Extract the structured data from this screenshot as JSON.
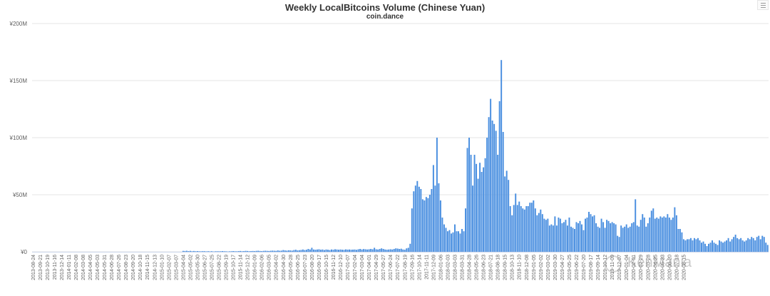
{
  "chart_data": {
    "type": "bar",
    "title": "Weekly LocalBitcoins Volume (Chinese Yuan)",
    "subtitle": "coin.dance",
    "ylabel": "",
    "xlabel": "",
    "ylim": [
      0,
      200000000
    ],
    "yticks": [
      {
        "value": 0,
        "label": "¥0"
      },
      {
        "value": 50000000,
        "label": "¥50M"
      },
      {
        "value": 100000000,
        "label": "¥100M"
      },
      {
        "value": 150000000,
        "label": "¥150M"
      },
      {
        "value": 200000000,
        "label": "¥200M"
      }
    ],
    "x_tick_labels": [
      "2013-08-24",
      "2013-09-21",
      "2013-10-19",
      "2013-11-16",
      "2013-12-14",
      "2014-01-11",
      "2014-02-08",
      "2014-03-08",
      "2014-04-05",
      "2014-05-03",
      "2014-05-31",
      "2014-06-28",
      "2014-07-26",
      "2014-08-23",
      "2014-09-20",
      "2014-10-18",
      "2014-11-15",
      "2014-12-13",
      "2015-01-10",
      "2015-02-07",
      "2015-03-07",
      "2015-04-04",
      "2015-05-02",
      "2015-05-30",
      "2015-06-27",
      "2015-07-25",
      "2015-08-22",
      "2015-09-19",
      "2015-10-17",
      "2015-11-14",
      "2015-12-12",
      "2016-01-09",
      "2016-02-06",
      "2016-03-05",
      "2016-04-02",
      "2016-04-30",
      "2016-05-28",
      "2016-06-25",
      "2016-07-23",
      "2016-08-20",
      "2016-09-17",
      "2016-10-15",
      "2016-11-12",
      "2016-12-10",
      "2017-01-07",
      "2017-02-04",
      "2017-03-04",
      "2017-04-01",
      "2017-04-29",
      "2017-05-27",
      "2017-06-24",
      "2017-07-22",
      "2017-08-19",
      "2017-09-16",
      "2017-10-14",
      "2017-11-11",
      "2017-12-09",
      "2018-01-06",
      "2018-02-03",
      "2018-03-03",
      "2018-03-31",
      "2018-04-28",
      "2018-05-26",
      "2018-06-23",
      "2018-07-21",
      "2018-08-18",
      "2018-09-15",
      "2018-10-13",
      "2018-11-10",
      "2018-12-08",
      "2019-01-05",
      "2019-02-02",
      "2019-03-02",
      "2019-03-30",
      "2019-04-27",
      "2019-05-25",
      "2019-06-22",
      "2019-07-20",
      "2019-08-17",
      "2019-09-14",
      "2019-10-12",
      "2019-11-09",
      "2019-12-07",
      "2020-01-04",
      "2020-02-01",
      "2020-02-29",
      "2020-03-28",
      "2020-04-25",
      "2020-05-23",
      "2020-06-20",
      "2020-07-18",
      "2020-08-15"
    ],
    "weeks_per_tick": 4,
    "color": "#4a8fe0",
    "values_millions": [
      0,
      0,
      0,
      0,
      0,
      0,
      0,
      0,
      0,
      0,
      0,
      0,
      0,
      0,
      0,
      0,
      0,
      0,
      0,
      0,
      0,
      0,
      0,
      0,
      0,
      0,
      0,
      0,
      0,
      0,
      0,
      0,
      0,
      0,
      0,
      0,
      0,
      0,
      0,
      0,
      0,
      0,
      0,
      0,
      0,
      0,
      0,
      0,
      0,
      0,
      0,
      0,
      0,
      0,
      0,
      0,
      0,
      0,
      0,
      0,
      0,
      0,
      0,
      0,
      0,
      0,
      0,
      0,
      0,
      0,
      0,
      0,
      0,
      0,
      0,
      0,
      0,
      0,
      0,
      0,
      0,
      0,
      0,
      0,
      0.8,
      0.7,
      0.9,
      0.6,
      0.8,
      0.5,
      0.7,
      0.5,
      0.6,
      0.5,
      0.4,
      0.6,
      0.5,
      0.4,
      0.5,
      0.4,
      0.5,
      0.3,
      0.4,
      0.5,
      0.4,
      0.5,
      0.6,
      0.5,
      0.4,
      0.3,
      0.4,
      0.5,
      0.6,
      0.5,
      0.4,
      0.6,
      0.7,
      0.5,
      0.6,
      0.8,
      0.7,
      0.5,
      0.6,
      0.7,
      0.6,
      0.8,
      0.9,
      0.7,
      0.6,
      0.8,
      0.9,
      0.8,
      0.7,
      0.9,
      1.0,
      0.9,
      0.8,
      1.2,
      0.9,
      1.0,
      1.5,
      1.2,
      1.0,
      1.3,
      1.2,
      1.0,
      1.5,
      1.8,
      1.2,
      1.4,
      1.6,
      2.0,
      1.5,
      1.8,
      2.5,
      2.0,
      3.5,
      2.0,
      1.8,
      2.0,
      2.2,
      1.8,
      2.0,
      1.5,
      2.0,
      1.8,
      1.5,
      2.0,
      1.8,
      2.2,
      2.0,
      1.8,
      2.0,
      1.8,
      1.7,
      2.1,
      1.9,
      2.0,
      1.8,
      1.9,
      2.0,
      1.7,
      2.2,
      2.5,
      2.0,
      2.4,
      2.2,
      2.0,
      2.2,
      2.5,
      2.2,
      3.5,
      2.2,
      2.0,
      2.5,
      3.0,
      2.5,
      2.0,
      1.8,
      2.0,
      2.2,
      2.0,
      2.5,
      3.0,
      2.8,
      2.5,
      2.7,
      2.0,
      1.8,
      3.0,
      3.5,
      7.0,
      38,
      53,
      58,
      62,
      57,
      55,
      46,
      45,
      48,
      47,
      50,
      55,
      76,
      58,
      100,
      60,
      45,
      30,
      24,
      21,
      18,
      19,
      16,
      17,
      24,
      18,
      18,
      16,
      20,
      18,
      38,
      91,
      100,
      85,
      58,
      85,
      77,
      64,
      78,
      70,
      74,
      82,
      100,
      118,
      134,
      115,
      112,
      106,
      85,
      132,
      168,
      105,
      66,
      71,
      63,
      40,
      32,
      41,
      51,
      41,
      44,
      40,
      38,
      37,
      40,
      40,
      43,
      43,
      45,
      38,
      32,
      34,
      37,
      33,
      29,
      28,
      29,
      23,
      24,
      23,
      31,
      23,
      30,
      29,
      25,
      26,
      28,
      23,
      30,
      22,
      21,
      20,
      26,
      25,
      27,
      24,
      19,
      29,
      30,
      35,
      33,
      31,
      32,
      25,
      22,
      21,
      29,
      26,
      21,
      28,
      27,
      25,
      26,
      25,
      24,
      14,
      13,
      23,
      21,
      22,
      24,
      21,
      22,
      25,
      26,
      46,
      23,
      22,
      28,
      33,
      30,
      22,
      25,
      30,
      36,
      38,
      29,
      30,
      29,
      31,
      30,
      31,
      30,
      33,
      30,
      28,
      30,
      39,
      32,
      20,
      20,
      17,
      11,
      10,
      11,
      11,
      12,
      10,
      12,
      11,
      12,
      10,
      8,
      9,
      7,
      5,
      7,
      8,
      10,
      8,
      7,
      6,
      10,
      9,
      8,
      9,
      10,
      12,
      9,
      11,
      13,
      15,
      12,
      11,
      12,
      10,
      9,
      10,
      12,
      11,
      13,
      12,
      10,
      13,
      14,
      11,
      14,
      13,
      8,
      6
    ]
  },
  "watermark_text": "KenMania"
}
